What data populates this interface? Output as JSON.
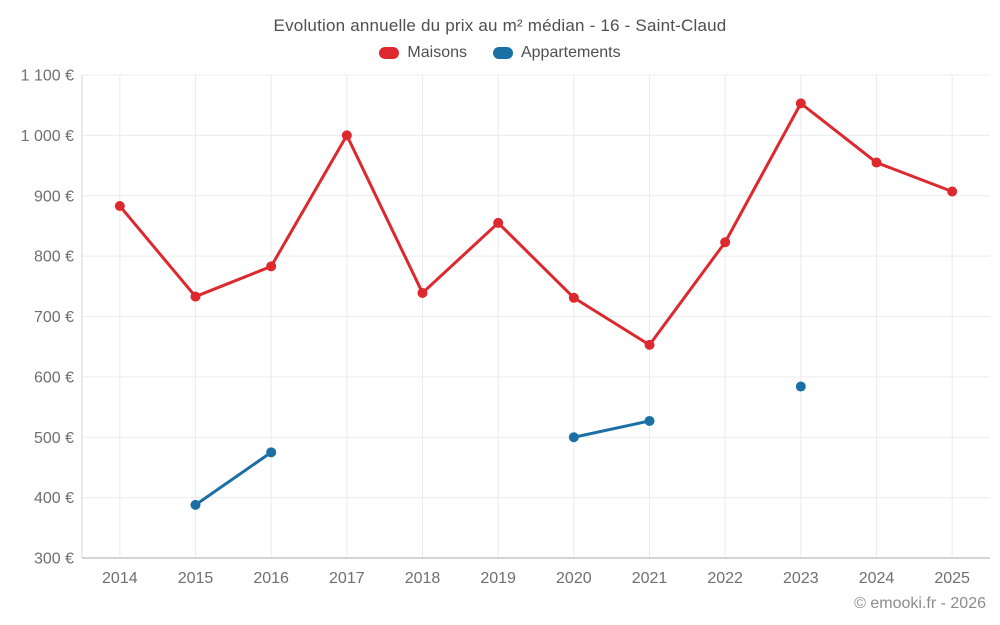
{
  "header": {
    "title": "Evolution annuelle du prix au m² médian - 16 - Saint-Claud"
  },
  "chart_data": {
    "type": "line",
    "title": "Evolution annuelle du prix au m² médian - 16 - Saint-Claud",
    "categories": [
      "2014",
      "2015",
      "2016",
      "2017",
      "2018",
      "2019",
      "2020",
      "2021",
      "2022",
      "2023",
      "2024",
      "2025"
    ],
    "series": [
      {
        "name": "Maisons",
        "color": "#dd282e",
        "values": [
          883,
          733,
          783,
          1000,
          739,
          855,
          731,
          653,
          823,
          1053,
          955,
          907
        ]
      },
      {
        "name": "Appartements",
        "color": "#1a6fa4",
        "values": [
          null,
          388,
          475,
          null,
          null,
          null,
          500,
          527,
          null,
          584,
          null,
          null
        ]
      }
    ],
    "ylim": [
      300,
      1100
    ],
    "yticks": [
      {
        "value": 300,
        "label": "300 €"
      },
      {
        "value": 400,
        "label": "400 €"
      },
      {
        "value": 500,
        "label": "500 €"
      },
      {
        "value": 600,
        "label": "600 €"
      },
      {
        "value": 700,
        "label": "700 €"
      },
      {
        "value": 800,
        "label": "800 €"
      },
      {
        "value": 900,
        "label": "900 €"
      },
      {
        "value": 1000,
        "label": "1 000 €"
      },
      {
        "value": 1100,
        "label": "1 100 €"
      }
    ],
    "grid": true,
    "legend_position": "top",
    "xlabel": "",
    "ylabel": ""
  },
  "footer": {
    "copyright": "© emooki.fr - 2026"
  }
}
